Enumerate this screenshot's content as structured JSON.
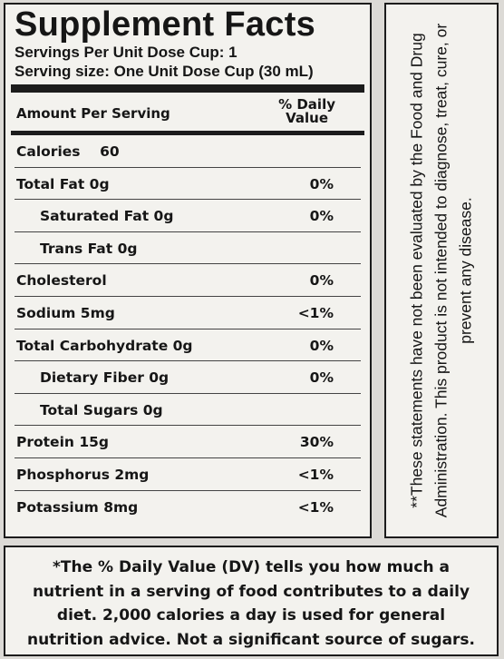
{
  "facts": {
    "title": "Supplement Facts",
    "servings_per": "Servings Per Unit Dose Cup: 1",
    "serving_size": "Serving size: One Unit Dose Cup (30 mL)",
    "amount_header": "Amount Per Serving",
    "dv_header_line1": "% Daily",
    "dv_header_line2": "Value",
    "rows": [
      {
        "name": "Calories",
        "amount": "60",
        "dv": ""
      },
      {
        "name": "Total Fat 0g",
        "amount": "",
        "dv": "0%"
      },
      {
        "name": "Saturated Fat 0g",
        "amount": "",
        "dv": "0%"
      },
      {
        "name": "Trans Fat 0g",
        "amount": "",
        "dv": ""
      },
      {
        "name": "Cholesterol",
        "amount": "",
        "dv": "0%"
      },
      {
        "name": "Sodium 5mg",
        "amount": "",
        "dv": "<1%"
      },
      {
        "name": "Total Carbohydrate 0g",
        "amount": "",
        "dv": "0%"
      },
      {
        "name": "Dietary Fiber 0g",
        "amount": "",
        "dv": "0%"
      },
      {
        "name": "Total Sugars 0g",
        "amount": "",
        "dv": ""
      },
      {
        "name": "Protein 15g",
        "amount": "",
        "dv": "30%"
      },
      {
        "name": "Phosphorus 2mg",
        "amount": "",
        "dv": "<1%"
      },
      {
        "name": "Potassium 8mg",
        "amount": "",
        "dv": "<1%"
      }
    ]
  },
  "disclaimer": {
    "text": "**These statements have not been evaluated by the Food and Drug Administration. This product is not intended to diagnose, treat, cure, or prevent any disease."
  },
  "footnote": {
    "text": "*The % Daily Value (DV) tells you how much a nutrient in a serving of food contributes to a daily diet. 2,000 calories a day is used for general nutrition advice. Not a significant source of sugars."
  }
}
